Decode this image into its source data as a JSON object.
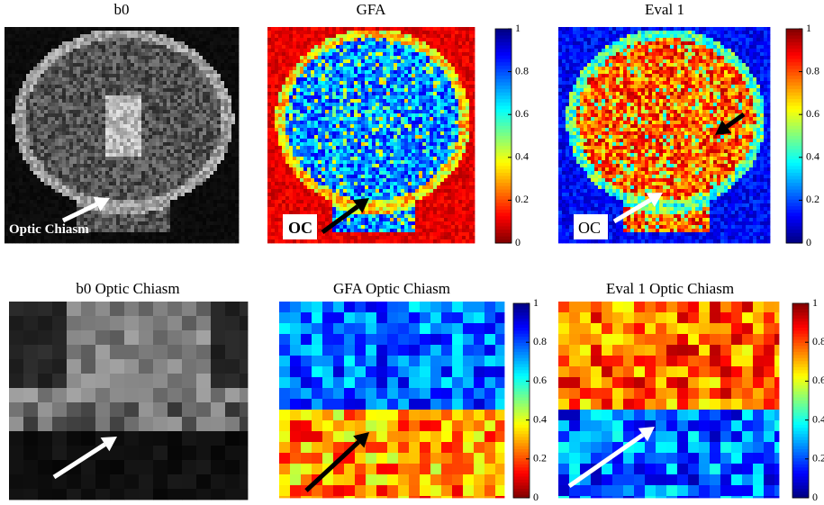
{
  "panels": [
    {
      "title": "b0",
      "annotation": "Optic Chiasm"
    },
    {
      "title": "GFA",
      "annotation": "OC",
      "colorbar": {
        "ticks": [
          0,
          0.2,
          0.4,
          0.6,
          0.8,
          1
        ],
        "range": [
          0,
          1
        ],
        "reversed": true
      }
    },
    {
      "title": "Eval 1",
      "annotation": "OC",
      "colorbar": {
        "ticks": [
          0,
          0.2,
          0.4,
          0.6,
          0.8,
          1
        ],
        "range": [
          0,
          1
        ],
        "reversed": false
      }
    },
    {
      "title": "b0 Optic Chiasm"
    },
    {
      "title": "GFA Optic Chiasm",
      "colorbar": {
        "ticks": [
          0,
          0.2,
          0.4,
          0.6,
          0.8,
          1
        ],
        "range": [
          0,
          1
        ],
        "reversed": true
      }
    },
    {
      "title": "Eval 1 Optic Chiasm",
      "colorbar": {
        "ticks": [
          0,
          0.2,
          0.4,
          0.6,
          0.8,
          1
        ],
        "range": [
          0,
          1
        ],
        "reversed": false
      }
    }
  ]
}
